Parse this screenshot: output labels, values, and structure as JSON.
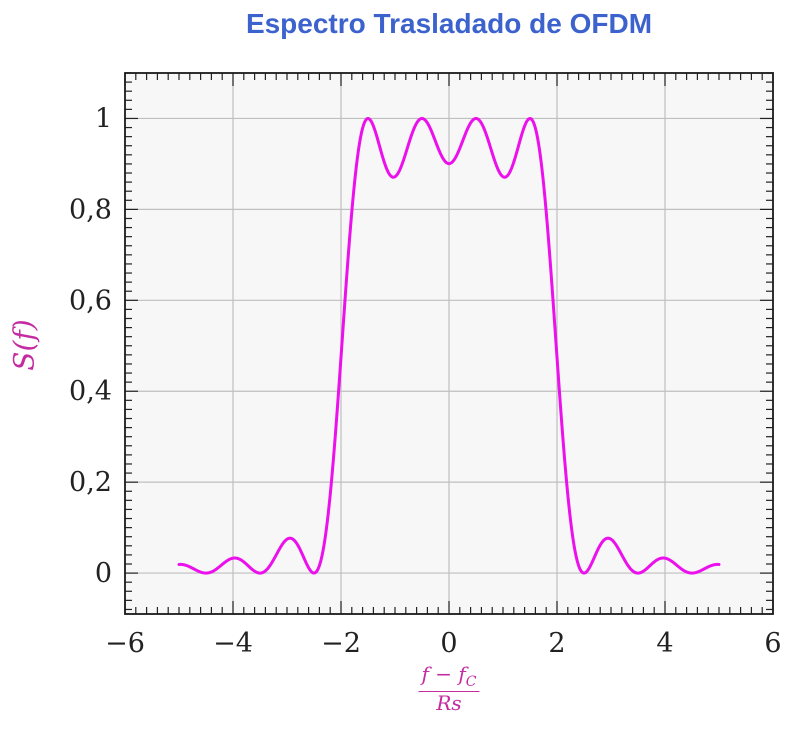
{
  "chart_data": {
    "type": "line",
    "title": "Espectro Trasladado de OFDM",
    "title_color": "#3B62CD",
    "ylabel": "S(f)",
    "xlabel": {
      "num_main": "f − f",
      "num_sub": "C",
      "den": "Rs"
    },
    "label_color": "#C42BA0",
    "xlim": [
      -6,
      6
    ],
    "ylim": [
      -0.09,
      1.1
    ],
    "x_ticks": {
      "values": [
        -6,
        -4,
        -2,
        0,
        2,
        4,
        6
      ],
      "labels": [
        "−6",
        "−4",
        "−2",
        "0",
        "2",
        "4",
        "6"
      ]
    },
    "y_ticks": {
      "values": [
        0,
        0.2,
        0.4,
        0.6,
        0.8,
        1
      ],
      "labels": [
        "0",
        "0,2",
        "0,4",
        "0,6",
        "0,8",
        "1"
      ]
    },
    "minor_tick_step": {
      "x": 0.2,
      "y": 0.02
    },
    "grid": true,
    "plot_bg": "#f7f7f7",
    "grid_color": "#bfbfbf",
    "frame_color": "#1a1a1a",
    "tick_label_color": "#222222",
    "series": [
      {
        "name": "S(f)",
        "color": "#EC10EC",
        "formula": "S(f) = sum over k of sinc^2(f - k)",
        "subcarriers": [
          -1.5,
          -0.5,
          0.5,
          1.5
        ],
        "domain": [
          -5,
          5
        ],
        "sample_step": 0.02
      }
    ]
  }
}
